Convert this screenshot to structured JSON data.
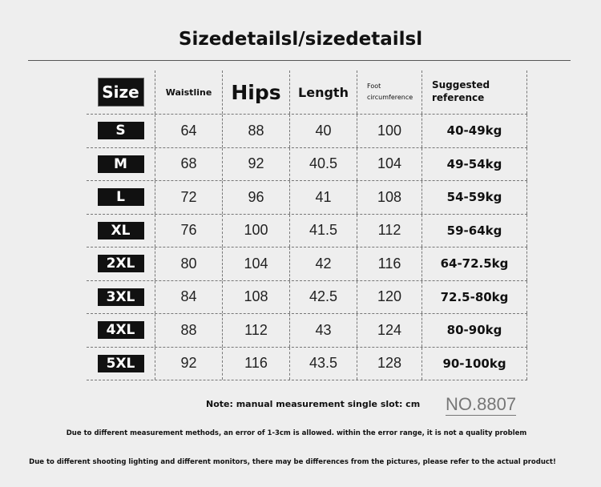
{
  "title": "Sizedetailsl/sizedetailsl",
  "headers": {
    "size": "Size",
    "waist": "Waistline",
    "hips": "Hips",
    "length": "Length",
    "foot": "Foot circumference",
    "suggested": "Suggested reference"
  },
  "rows": [
    [
      "S",
      "64",
      "88",
      "40",
      "100",
      "40-49kg"
    ],
    [
      "M",
      "68",
      "92",
      "40.5",
      "104",
      "49-54kg"
    ],
    [
      "L",
      "72",
      "96",
      "41",
      "108",
      "54-59kg"
    ],
    [
      "XL",
      "76",
      "100",
      "41.5",
      "112",
      "59-64kg"
    ],
    [
      "2XL",
      "80",
      "104",
      "42",
      "116",
      "64-72.5kg"
    ],
    [
      "3XL",
      "84",
      "108",
      "42.5",
      "120",
      "72.5-80kg"
    ],
    [
      "4XL",
      "88",
      "112",
      "43",
      "124",
      "80-90kg"
    ],
    [
      "5XL",
      "92",
      "116",
      "43.5",
      "128",
      "90-100kg"
    ]
  ],
  "note": "Note: manual measurement single slot: cm",
  "model_no": "NO.8807",
  "disclaimer1": "Due to different measurement methods, an error of 1-3cm is allowed. within the error range, it is not a quality problem",
  "disclaimer2": "Due to different shooting lighting and different monitors, there may be differences from the pictures, please refer to the actual product!"
}
